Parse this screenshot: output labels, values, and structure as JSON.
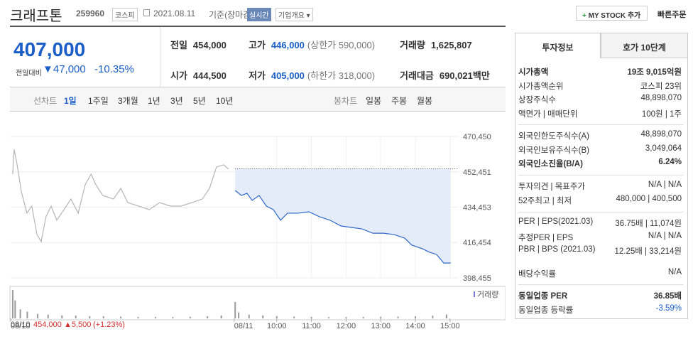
{
  "header": {
    "name": "크래프톤",
    "code": "259960",
    "market": "코스피",
    "date": "2021.08.11",
    "basis": "기준(장마감)",
    "realtime": "실시간",
    "company": "기업개요",
    "mystock": "MY STOCK 추가",
    "quick": "빠른주문"
  },
  "quote": {
    "price": "407,000",
    "change_label": "전일대비",
    "change": "47,000",
    "rate": "-10.35%",
    "items": [
      {
        "label": "전일",
        "value": "454,000"
      },
      {
        "label": "고가",
        "value": "446,000",
        "extra": "(상한가 590,000)"
      },
      {
        "label": "거래량",
        "value": "1,625,807"
      },
      {
        "label": "시가",
        "value": "444,500"
      },
      {
        "label": "저가",
        "value": "405,000",
        "extra": "(하한가 318,000)"
      },
      {
        "label": "거래대금",
        "value": "690,021",
        "unit": "백만"
      }
    ]
  },
  "periods": {
    "line_label": "선차트",
    "line_items": [
      "1일",
      "1주일",
      "3개월",
      "1년",
      "3년",
      "5년",
      "10년"
    ],
    "candle_label": "봉차트",
    "candle_items": [
      "일봉",
      "주봉",
      "월봉"
    ]
  },
  "chart_data": [
    {
      "type": "line",
      "baseline": 454000,
      "xlim": [
        -6.68,
        6.23
      ],
      "xticks": [
        {
          "value": -6.68,
          "label": "08/10"
        },
        {
          "value": -0.23,
          "label": "08/11"
        },
        {
          "value": 1,
          "label": "10:00"
        },
        {
          "value": 2,
          "label": "11:00"
        },
        {
          "value": 3,
          "label": "12:00"
        },
        {
          "value": 4,
          "label": "13:00"
        },
        {
          "value": 5,
          "label": "14:00"
        },
        {
          "value": 6,
          "label": "15:00"
        }
      ],
      "ylim": [
        398455,
        470450
      ],
      "yticks": [
        {
          "value": 398455,
          "label": "398,455"
        },
        {
          "value": 416454,
          "label": "416,454"
        },
        {
          "value": 434453,
          "label": "434,453"
        },
        {
          "value": 452451,
          "label": "452,451"
        },
        {
          "value": 470450,
          "label": "470,450"
        }
      ],
      "series": [
        {
          "color": "#b5b5b5",
          "x": [
            -6.62,
            -6.58,
            -6.5,
            -6.37,
            -6.21,
            -6.07,
            -5.92,
            -5.8,
            -5.66,
            -5.51,
            -5.35,
            -5.14,
            -4.94,
            -4.73,
            -4.53,
            -4.36,
            -4.22,
            -4.02,
            -3.71,
            -3.5,
            -3.3,
            -2.99,
            -2.68,
            -2.38,
            -2.07,
            -1.76,
            -1.45,
            -1.15,
            -0.94,
            -0.74,
            -0.53,
            -0.39
          ],
          "values": [
            451300,
            463900,
            456700,
            442200,
            431400,
            435000,
            420500,
            416900,
            429600,
            435000,
            427800,
            433200,
            438600,
            431400,
            445800,
            451300,
            445800,
            440400,
            438600,
            444000,
            436800,
            435000,
            433200,
            436800,
            435000,
            435000,
            436800,
            438600,
            444000,
            454900,
            456000,
            453800
          ]
        },
        {
          "color": "#2e67c9",
          "x": [
            -0.2,
            -0.02,
            0.14,
            0.29,
            0.49,
            0.7,
            0.9,
            1.11,
            1.31,
            1.62,
            1.93,
            2.23,
            2.54,
            2.85,
            3.16,
            3.46,
            3.77,
            4.08,
            4.39,
            4.69,
            4.9,
            5.2,
            5.41,
            5.61,
            5.82,
            6.02
          ],
          "values": [
            442950,
            440400,
            441500,
            437900,
            440400,
            435000,
            433200,
            427800,
            431400,
            431400,
            432100,
            429600,
            427800,
            424900,
            424100,
            423400,
            421200,
            421200,
            420500,
            418700,
            415100,
            413300,
            411500,
            410400,
            406000,
            406000
          ]
        }
      ]
    },
    {
      "type": "bar",
      "ylim": [
        0,
        200000
      ],
      "series": [
        {
          "name": "거래량",
          "color": "#9a9a9a",
          "x": [
            -6.62,
            -6.55,
            -6.4,
            -6.2,
            -5.9,
            -5.6,
            -5.2,
            -4.8,
            -4.4,
            -4,
            -3.5,
            -3,
            -2.5,
            -2,
            -1.5,
            -1,
            -0.6,
            -0.2,
            -0.1,
            0.2,
            0.6,
            1,
            1.5,
            2,
            2.5,
            3,
            3.5,
            4,
            4.5,
            5,
            5.5,
            5.9
          ],
          "values": [
            190000,
            120000,
            60000,
            45000,
            30000,
            25000,
            20000,
            18000,
            15000,
            14000,
            12000,
            10000,
            10000,
            9000,
            11000,
            14000,
            20000,
            110000,
            40000,
            25000,
            20000,
            15000,
            12000,
            10000,
            9000,
            9000,
            10000,
            11000,
            12000,
            14000,
            18000,
            26000
          ]
        }
      ]
    }
  ],
  "footer": {
    "date": "08/10",
    "price": "454,000",
    "change": "▲5,500",
    "rate": "(+1.23%)"
  },
  "sidebar": {
    "tabs": [
      "투자정보",
      "호가 10단계"
    ],
    "groups": [
      [
        {
          "label": "시가총액",
          "value": "19조 9,015억원"
        },
        {
          "label": "시가총액순위",
          "value": "코스피 23위"
        },
        {
          "label": "상장주식수",
          "value": "48,898,070"
        },
        {
          "label": "액면가 | 매매단위",
          "value": "100원 | 1주"
        }
      ],
      [
        {
          "label": "외국인한도주식수(A)",
          "value": "48,898,070"
        },
        {
          "label": "외국인보유주식수(B)",
          "value": "3,049,064"
        },
        {
          "label": "외국인소진율(B/A)",
          "value": "6.24%"
        }
      ],
      [
        {
          "label": "투자의견 | 목표주가",
          "value": "N/A | N/A"
        },
        {
          "label": "52주최고 | 최저",
          "value": "480,000 | 400,500"
        }
      ],
      [
        {
          "label": "PER | EPS(2021.03)",
          "value": "36.75배 | 11,074원"
        },
        {
          "label": "추정PER | EPS",
          "value": "N/A | N/A"
        },
        {
          "label": "PBR | BPS (2021.03)",
          "value": "12.25배 | 33,214원"
        },
        {
          "label": "배당수익률",
          "value": "N/A"
        }
      ],
      [
        {
          "label": "동일업종 PER",
          "value": "36.85배"
        },
        {
          "label": "동일업종 등락률",
          "value": "-3.59%"
        }
      ]
    ]
  }
}
